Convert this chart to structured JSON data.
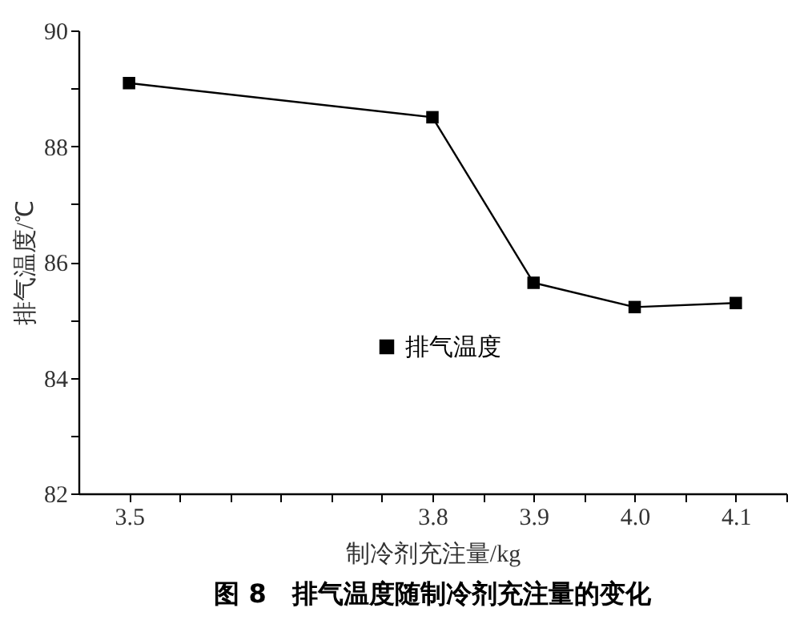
{
  "chart_data": {
    "type": "line",
    "title": "图 8　排气温度随制冷剂充注量的变化",
    "xlabel": "制冷剂充注量/kg",
    "ylabel": "排气温度/℃",
    "x": [
      3.5,
      3.8,
      3.9,
      4.0,
      4.1
    ],
    "series": [
      {
        "name": "排气温度",
        "color": "#000000",
        "values": [
          89.09,
          88.5,
          85.64,
          85.22,
          85.29
        ]
      }
    ],
    "xlim": [
      3.45,
      4.15
    ],
    "xticks": [
      3.5,
      {
        "value": 3.55,
        "label": null
      },
      {
        "value": 3.6,
        "label": null
      },
      {
        "value": 3.65,
        "label": null
      },
      {
        "value": 3.7,
        "label": null
      },
      {
        "value": 3.75,
        "label": null
      },
      3.8,
      {
        "value": 3.85,
        "label": null
      },
      3.9,
      {
        "value": 3.95,
        "label": null
      },
      {
        "value": 4.0,
        "label": "4.0"
      },
      {
        "value": 4.05,
        "label": null
      },
      4.1,
      {
        "value": 4.15,
        "label": null
      }
    ],
    "ylim": [
      82,
      90
    ],
    "yticks": [
      82,
      {
        "value": 83,
        "label": null
      },
      84,
      {
        "value": 85,
        "label": null
      },
      86,
      {
        "value": 87,
        "label": null
      },
      88,
      {
        "value": 89,
        "label": null
      },
      90
    ],
    "marker": "square",
    "line_style": "solid",
    "grid": false,
    "legend": "right"
  }
}
